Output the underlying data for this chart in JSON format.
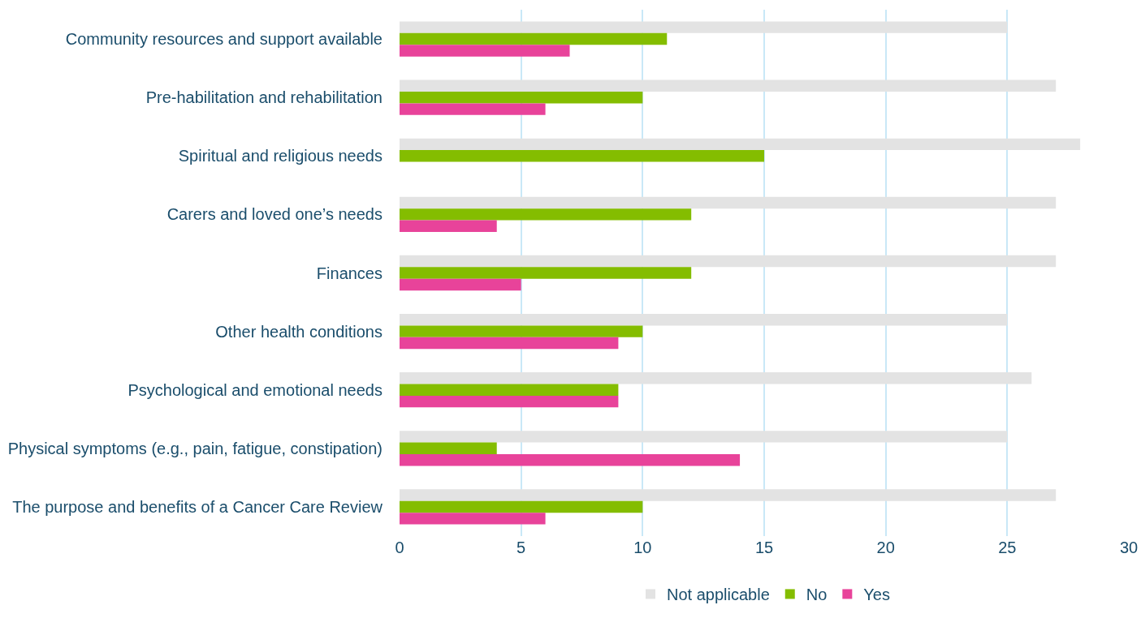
{
  "chart_data": {
    "type": "bar",
    "orientation": "horizontal",
    "categories": [
      "Community resources and support available",
      "Pre-habilitation and rehabilitation",
      "Spiritual and religious needs",
      "Carers and loved one’s needs",
      "Finances",
      "Other health conditions",
      "Psychological and emotional needs",
      "Physical symptoms (e.g., pain, fatigue, constipation)",
      "The purpose and benefits of a Cancer Care Review"
    ],
    "series": [
      {
        "name": "Not applicable",
        "color": "#e3e3e3",
        "values": [
          25,
          27,
          28,
          27,
          27,
          25,
          26,
          25,
          27
        ]
      },
      {
        "name": "No",
        "color": "#84bd00",
        "values": [
          11,
          10,
          15,
          12,
          12,
          10,
          9,
          4,
          10
        ]
      },
      {
        "name": "Yes",
        "color": "#e8439a",
        "values": [
          7,
          6,
          0,
          4,
          5,
          9,
          9,
          14,
          6
        ]
      }
    ],
    "xlim": [
      0,
      30
    ],
    "xticks": [
      0,
      5,
      10,
      15,
      20,
      25,
      30
    ],
    "grid": "x",
    "legend": "bottom"
  }
}
